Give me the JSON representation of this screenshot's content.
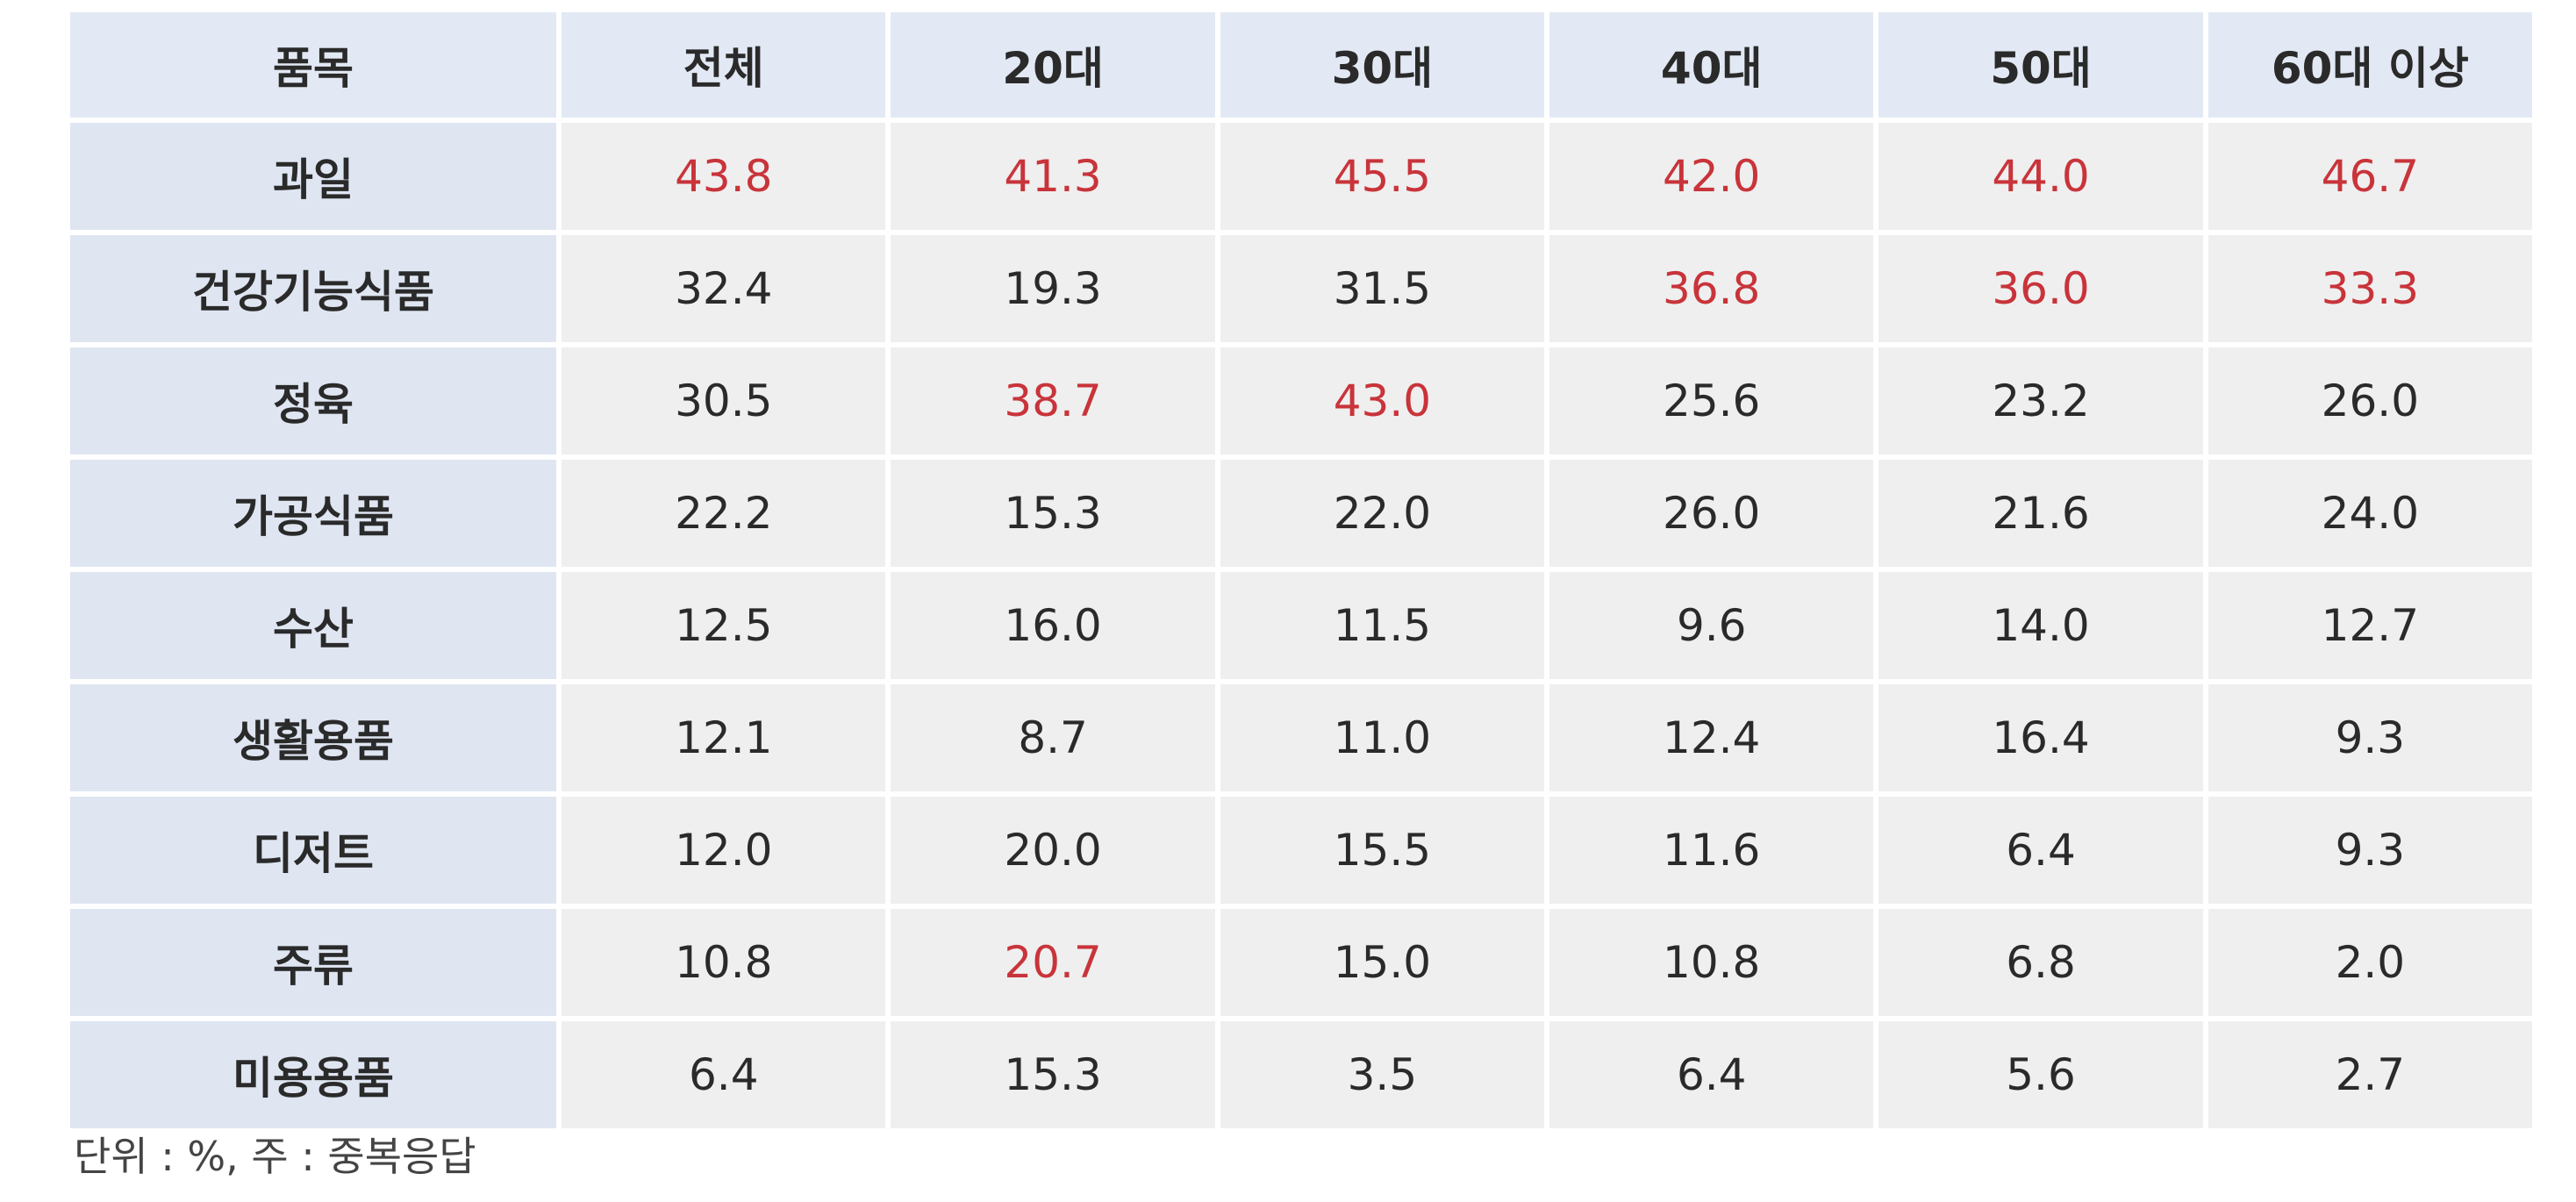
{
  "columns": [
    "품목",
    "전체",
    "20대",
    "30대",
    "40대",
    "50대",
    "60대 이상"
  ],
  "rows": [
    {
      "label": "과일",
      "values": [
        "43.8",
        "41.3",
        "45.5",
        "42.0",
        "44.0",
        "46.7"
      ],
      "highlight": [
        true,
        true,
        true,
        true,
        true,
        true
      ]
    },
    {
      "label": "건강기능식품",
      "values": [
        "32.4",
        "19.3",
        "31.5",
        "36.8",
        "36.0",
        "33.3"
      ],
      "highlight": [
        false,
        false,
        false,
        true,
        true,
        true
      ]
    },
    {
      "label": "정육",
      "values": [
        "30.5",
        "38.7",
        "43.0",
        "25.6",
        "23.2",
        "26.0"
      ],
      "highlight": [
        false,
        true,
        true,
        false,
        false,
        false
      ]
    },
    {
      "label": "가공식품",
      "values": [
        "22.2",
        "15.3",
        "22.0",
        "26.0",
        "21.6",
        "24.0"
      ],
      "highlight": [
        false,
        false,
        false,
        false,
        false,
        false
      ]
    },
    {
      "label": "수산",
      "values": [
        "12.5",
        "16.0",
        "11.5",
        "9.6",
        "14.0",
        "12.7"
      ],
      "highlight": [
        false,
        false,
        false,
        false,
        false,
        false
      ]
    },
    {
      "label": "생활용품",
      "values": [
        "12.1",
        "8.7",
        "11.0",
        "12.4",
        "16.4",
        "9.3"
      ],
      "highlight": [
        false,
        false,
        false,
        false,
        false,
        false
      ]
    },
    {
      "label": "디저트",
      "values": [
        "12.0",
        "20.0",
        "15.5",
        "11.6",
        "6.4",
        "9.3"
      ],
      "highlight": [
        false,
        false,
        false,
        false,
        false,
        false
      ]
    },
    {
      "label": "주류",
      "values": [
        "10.8",
        "20.7",
        "15.0",
        "10.8",
        "6.8",
        "2.0"
      ],
      "highlight": [
        false,
        true,
        false,
        false,
        false,
        false
      ]
    },
    {
      "label": "미용용품",
      "values": [
        "6.4",
        "15.3",
        "3.5",
        "6.4",
        "5.6",
        "2.7"
      ],
      "highlight": [
        false,
        false,
        false,
        false,
        false,
        false
      ]
    }
  ],
  "note": "단위 : %, 주 : 중복응답",
  "colors": {
    "highlight": "#c8343a",
    "header_bg": "#e2e9f4",
    "label_bg": "#dfe6f2",
    "cell_bg": "#efefef"
  }
}
